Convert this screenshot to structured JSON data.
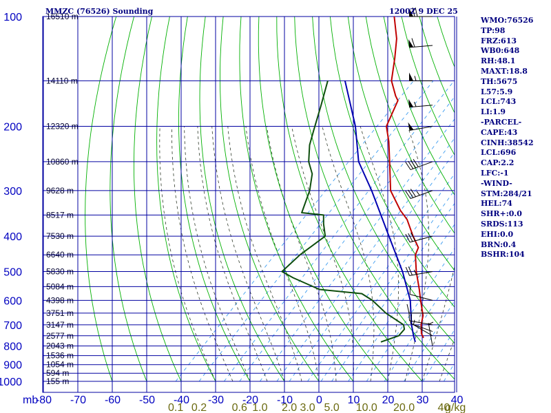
{
  "chart_data": {
    "type": "skew-t sounding",
    "title": "MMZC (76526) Sounding",
    "valid_time": "1200Z  9 DEC 25",
    "pressure_unit": "mb",
    "pressure_levels": [
      100,
      150,
      200,
      250,
      300,
      350,
      400,
      450,
      500,
      550,
      600,
      650,
      700,
      750,
      800,
      850,
      900,
      950,
      1000
    ],
    "pressure_labels": [
      "100",
      "200",
      "300",
      "400",
      "500",
      "600",
      "700",
      "800",
      "900",
      "1000"
    ],
    "height_labels": [
      {
        "p": 100,
        "text": "16510 m"
      },
      {
        "p": 150,
        "text": "14110 m"
      },
      {
        "p": 200,
        "text": "12320 m"
      },
      {
        "p": 250,
        "text": "10860 m"
      },
      {
        "p": 300,
        "text": "9628 m"
      },
      {
        "p": 350,
        "text": "8517 m"
      },
      {
        "p": 400,
        "text": "7530 m"
      },
      {
        "p": 450,
        "text": "6640 m"
      },
      {
        "p": 500,
        "text": "5830 m"
      },
      {
        "p": 550,
        "text": "5084 m"
      },
      {
        "p": 600,
        "text": "4398 m"
      },
      {
        "p": 650,
        "text": "3751 m"
      },
      {
        "p": 700,
        "text": "3147 m"
      },
      {
        "p": 750,
        "text": "2577 m"
      },
      {
        "p": 800,
        "text": "2043 m"
      },
      {
        "p": 850,
        "text": "1536 m"
      },
      {
        "p": 900,
        "text": "1054 m"
      },
      {
        "p": 950,
        "text": "594 m"
      },
      {
        "p": 1000,
        "text": "155 m"
      }
    ],
    "temperature_axis": {
      "unit": "C",
      "ticks": [
        -80,
        -70,
        -60,
        -50,
        -40,
        -30,
        -20,
        -10,
        0,
        10,
        20,
        30,
        40
      ]
    },
    "mixing_ratio": {
      "unit": "g/kg",
      "ticks": [
        {
          "v": 0.1,
          "t": "0.1"
        },
        {
          "v": 0.2,
          "t": "0.2"
        },
        {
          "v": 0.6,
          "t": "0.6"
        },
        {
          "v": 1.0,
          "t": "1.0"
        },
        {
          "v": 2.0,
          "t": "2.0"
        },
        {
          "v": 3.0,
          "t": "3.0"
        },
        {
          "v": 5.0,
          "t": "5.0"
        },
        {
          "v": 10.0,
          "t": "10.0"
        },
        {
          "v": 20.0,
          "t": "20.0"
        },
        {
          "v": 40.0,
          "t": "40"
        }
      ],
      "unit_label": "g/kg"
    },
    "temperature": [
      [
        760,
        18.0
      ],
      [
        740,
        16.2
      ],
      [
        700,
        13.6
      ],
      [
        660,
        11.5
      ],
      [
        600,
        6.5
      ],
      [
        560,
        3.0
      ],
      [
        500,
        -3.0
      ],
      [
        450,
        -8.0
      ],
      [
        430,
        -9.2
      ],
      [
        400,
        -14.0
      ],
      [
        360,
        -20.5
      ],
      [
        340,
        -25.0
      ],
      [
        300,
        -33.5
      ],
      [
        250,
        -42.0
      ],
      [
        220,
        -48.0
      ],
      [
        200,
        -53.0
      ],
      [
        170,
        -57.0
      ],
      [
        165,
        -59.0
      ],
      [
        150,
        -64.5
      ],
      [
        130,
        -70.0
      ],
      [
        115,
        -75.0
      ],
      [
        100,
        -82.0
      ]
    ],
    "dewpoint": [
      [
        780,
        6.8
      ],
      [
        765,
        8.5
      ],
      [
        750,
        10.2
      ],
      [
        720,
        10.0
      ],
      [
        700,
        8.5
      ],
      [
        650,
        0.0
      ],
      [
        600,
        -7.5
      ],
      [
        575,
        -12.5
      ],
      [
        560,
        -26.0
      ],
      [
        520,
        -37.0
      ],
      [
        500,
        -42.0
      ],
      [
        450,
        -41.5
      ],
      [
        400,
        -39.5
      ],
      [
        370,
        -43.5
      ],
      [
        350,
        -46.0
      ],
      [
        345,
        -53.0
      ],
      [
        300,
        -57.0
      ],
      [
        270,
        -61.0
      ],
      [
        250,
        -65.5
      ],
      [
        225,
        -70.0
      ],
      [
        205,
        -73.0
      ],
      [
        175,
        -78.0
      ],
      [
        150,
        -83.0
      ]
    ],
    "parcel": [
      [
        780,
        16.8
      ],
      [
        750,
        14.5
      ],
      [
        700,
        10.8
      ],
      [
        600,
        3.5
      ],
      [
        500,
        -7.0
      ],
      [
        400,
        -21.0
      ],
      [
        300,
        -39.0
      ],
      [
        250,
        -51.0
      ],
      [
        200,
        -62.0
      ],
      [
        150,
        -78.0
      ]
    ],
    "wind_barbs": [
      {
        "p": 100,
        "dir": 270,
        "spd": 70
      },
      {
        "p": 120,
        "dir": 265,
        "spd": 60
      },
      {
        "p": 150,
        "dir": 270,
        "spd": 55
      },
      {
        "p": 175,
        "dir": 265,
        "spd": 55
      },
      {
        "p": 200,
        "dir": 260,
        "spd": 50
      },
      {
        "p": 250,
        "dir": 250,
        "spd": 40
      },
      {
        "p": 300,
        "dir": 250,
        "spd": 35
      },
      {
        "p": 400,
        "dir": 255,
        "spd": 30
      },
      {
        "p": 500,
        "dir": 260,
        "spd": 25
      },
      {
        "p": 600,
        "dir": 285,
        "spd": 10
      },
      {
        "p": 650,
        "dir": 270,
        "spd": 10
      },
      {
        "p": 700,
        "dir": 280,
        "spd": 10
      },
      {
        "p": 730,
        "dir": 290,
        "spd": 10
      },
      {
        "p": 750,
        "dir": 300,
        "spd": 5
      },
      {
        "p": 800,
        "dir": 350,
        "spd": 5
      }
    ],
    "colors": {
      "grid": "#0000a0",
      "axis_text": "#0000c0",
      "title": "#000080",
      "dry_adiabat": "#00b000",
      "moist_adiabat": "#2f3a2a",
      "mixing_ratio": "#3c9cf0",
      "mixing_label": "#6b6a10",
      "temperature": "#c00000",
      "dewpoint": "#0d4d0d",
      "parcel": "#0000b0",
      "wind": "#000000"
    }
  },
  "stats": [
    "WMO:76526",
    "TP:98",
    "FRZ:613",
    "WB0:648",
    "RH:48.1",
    "MAXT:18.8",
    "TH:5675",
    "L57:5.9",
    "LCL:743",
    "LI:1.9",
    "-PARCEL-",
    "CAPE:43",
    "CINH:38542",
    "LCL:696",
    "CAP:2.2",
    "LFC:-1",
    "-WIND-",
    "STM:284/21",
    "HEL:74",
    "SHR+:0.0",
    "SRDS:113",
    "EHI:0.0",
    "BRN:0.4",
    "BSHR:104"
  ]
}
